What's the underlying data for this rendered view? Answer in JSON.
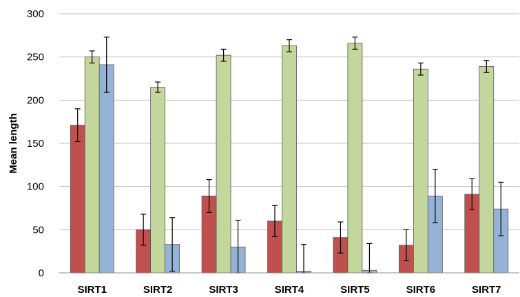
{
  "chart_data": {
    "type": "bar",
    "title": "",
    "xlabel": "",
    "ylabel": "Mean length",
    "ylim": [
      0,
      300
    ],
    "yticks": [
      0,
      50,
      100,
      150,
      200,
      250,
      300
    ],
    "grid": true,
    "legend": "none",
    "categories": [
      "SIRT1",
      "SIRT2",
      "SIRT3",
      "SIRT4",
      "SIRT5",
      "SIRT6",
      "SIRT7"
    ],
    "series": [
      {
        "color": "#c0504d",
        "values": [
          171,
          50,
          89,
          60,
          41,
          32,
          91
        ],
        "errors": [
          19,
          18,
          19,
          18,
          18,
          18,
          18
        ]
      },
      {
        "color": "#c3d69b",
        "values": [
          250,
          215,
          252,
          263,
          266,
          236,
          239
        ],
        "errors": [
          7,
          6,
          7,
          7,
          7,
          7,
          7
        ]
      },
      {
        "color": "#95b3d7",
        "values": [
          241,
          33,
          30,
          2,
          3,
          89,
          74
        ],
        "errors": [
          32,
          31,
          31,
          31,
          31,
          31,
          31
        ]
      }
    ]
  }
}
